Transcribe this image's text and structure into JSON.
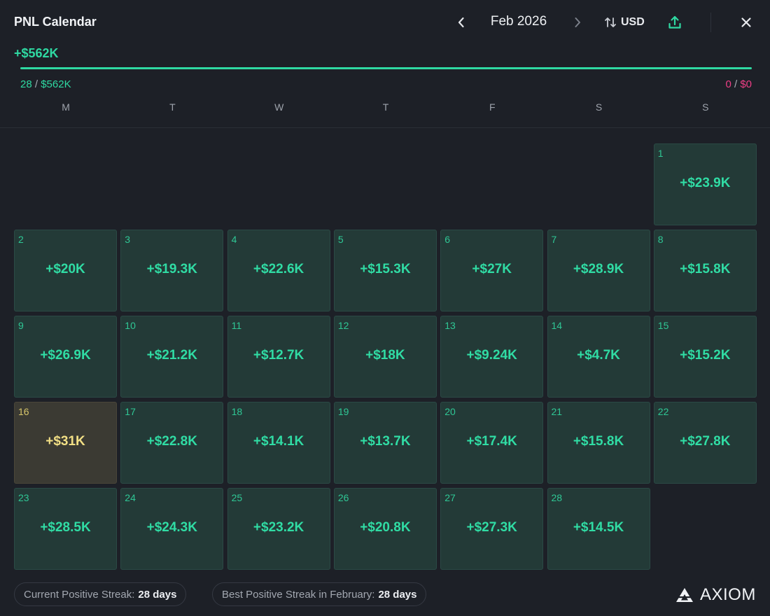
{
  "header": {
    "title": "PNL Calendar",
    "month": "Feb 2026",
    "currency": "USD"
  },
  "summary": {
    "total": "+$562K",
    "positive_days": "28",
    "positive_total": "$562K",
    "negative_days": "0",
    "negative_total": "$0",
    "separator": "/",
    "positive_share": 1.0
  },
  "weekdays": [
    "M",
    "T",
    "W",
    "T",
    "F",
    "S",
    "S"
  ],
  "days": [
    {
      "day": "1",
      "pnl": "+$23.9K"
    },
    {
      "day": "2",
      "pnl": "+$20K"
    },
    {
      "day": "3",
      "pnl": "+$19.3K"
    },
    {
      "day": "4",
      "pnl": "+$22.6K"
    },
    {
      "day": "5",
      "pnl": "+$15.3K"
    },
    {
      "day": "6",
      "pnl": "+$27K"
    },
    {
      "day": "7",
      "pnl": "+$28.9K"
    },
    {
      "day": "8",
      "pnl": "+$15.8K"
    },
    {
      "day": "9",
      "pnl": "+$26.9K"
    },
    {
      "day": "10",
      "pnl": "+$21.2K"
    },
    {
      "day": "11",
      "pnl": "+$12.7K"
    },
    {
      "day": "12",
      "pnl": "+$18K"
    },
    {
      "day": "13",
      "pnl": "+$9.24K"
    },
    {
      "day": "14",
      "pnl": "+$4.7K"
    },
    {
      "day": "15",
      "pnl": "+$15.2K"
    },
    {
      "day": "16",
      "pnl": "+$31K",
      "best": true
    },
    {
      "day": "17",
      "pnl": "+$22.8K"
    },
    {
      "day": "18",
      "pnl": "+$14.1K"
    },
    {
      "day": "19",
      "pnl": "+$13.7K"
    },
    {
      "day": "20",
      "pnl": "+$17.4K"
    },
    {
      "day": "21",
      "pnl": "+$15.8K"
    },
    {
      "day": "22",
      "pnl": "+$27.8K"
    },
    {
      "day": "23",
      "pnl": "+$28.5K"
    },
    {
      "day": "24",
      "pnl": "+$24.3K"
    },
    {
      "day": "25",
      "pnl": "+$23.2K"
    },
    {
      "day": "26",
      "pnl": "+$20.8K"
    },
    {
      "day": "27",
      "pnl": "+$27.3K"
    },
    {
      "day": "28",
      "pnl": "+$14.5K"
    }
  ],
  "footer": {
    "current_streak_label": "Current Positive Streak:",
    "current_streak_value": "28 days",
    "best_streak_label": "Best Positive Streak in February:",
    "best_streak_value": "28 days",
    "brand": "AXIOM"
  },
  "icons": {
    "prev": "chevron-left-icon",
    "next": "chevron-right-icon",
    "currency_toggle": "swap-vertical-icon",
    "export": "upload-icon",
    "close": "close-icon",
    "brand": "axiom-logo-icon"
  },
  "colors": {
    "positive": "#2fd9a2",
    "negative": "#ee3f86",
    "best_day": "#f2df85",
    "background": "#1d2027",
    "cell": "#233a37"
  }
}
